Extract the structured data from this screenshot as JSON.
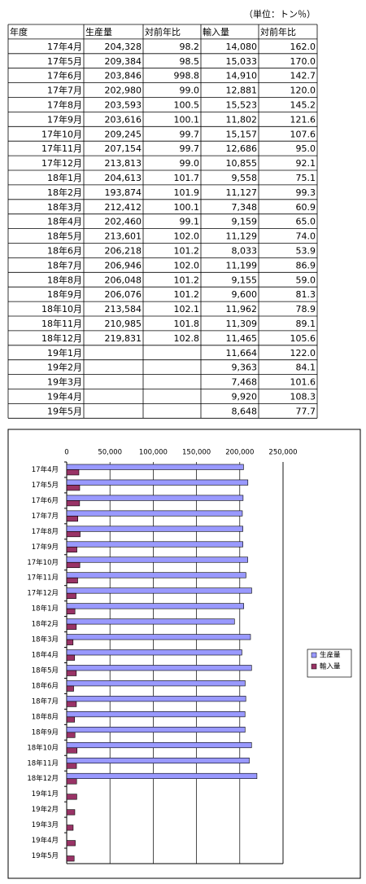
{
  "unit": "（単位：トン％）",
  "table": {
    "header": [
      "年度",
      "生産量",
      "対前年比",
      "輸入量",
      "対前年比"
    ],
    "rows": [
      [
        "17年4月",
        "204,328",
        "98.2",
        "14,080",
        "162.0"
      ],
      [
        "17年5月",
        "209,384",
        "98.5",
        "15,033",
        "170.0"
      ],
      [
        "17年6月",
        "203,846",
        "998.8",
        "14,910",
        "142.7"
      ],
      [
        "17年7月",
        "202,980",
        "99.0",
        "12,881",
        "120.0"
      ],
      [
        "17年8月",
        "203,593",
        "100.5",
        "15,523",
        "145.2"
      ],
      [
        "17年9月",
        "203,616",
        "100.1",
        "11,802",
        "121.6"
      ],
      [
        "17年10月",
        "209,245",
        "99.7",
        "15,157",
        "107.6"
      ],
      [
        "17年11月",
        "207,154",
        "99.7",
        "12,686",
        "95.0"
      ],
      [
        "17年12月",
        "213,813",
        "99.0",
        "10,855",
        "92.1"
      ],
      [
        "18年1月",
        "204,613",
        "101.7",
        "9,558",
        "75.1"
      ],
      [
        "18年2月",
        "193,874",
        "101.9",
        "11,127",
        "99.3"
      ],
      [
        "18年3月",
        "212,412",
        "100.1",
        "7,348",
        "60.9"
      ],
      [
        "18年4月",
        "202,460",
        "99.1",
        "9,159",
        "65.0"
      ],
      [
        "18年5月",
        "213,601",
        "102.0",
        "11,129",
        "74.0"
      ],
      [
        "18年6月",
        "206,218",
        "101.2",
        "8,033",
        "53.9"
      ],
      [
        "18年7月",
        "206,946",
        "102.0",
        "11,199",
        "86.9"
      ],
      [
        "18年8月",
        "206,048",
        "101.2",
        "9,155",
        "59.0"
      ],
      [
        "18年9月",
        "206,076",
        "101.2",
        "9,600",
        "81.3"
      ],
      [
        "18年10月",
        "213,584",
        "102.1",
        "11,962",
        "78.9"
      ],
      [
        "18年11月",
        "210,985",
        "101.8",
        "11,309",
        "89.1"
      ],
      [
        "18年12月",
        "219,831",
        "102.8",
        "11,465",
        "105.6"
      ],
      [
        "19年1月",
        null,
        null,
        "11,664",
        "122.0"
      ],
      [
        "19年2月",
        null,
        null,
        "9,363",
        "84.1"
      ],
      [
        "19年3月",
        null,
        null,
        "7,468",
        "101.6"
      ],
      [
        "19年4月",
        null,
        null,
        "9,920",
        "108.3"
      ],
      [
        "19年5月",
        null,
        null,
        "8,648",
        "77.7"
      ]
    ]
  },
  "chart_data": {
    "type": "hbar",
    "categories": [
      "17年4月",
      "17年5月",
      "17年6月",
      "17年7月",
      "17年8月",
      "17年9月",
      "17年10月",
      "17年11月",
      "17年12月",
      "18年1月",
      "18年2月",
      "18年3月",
      "18年4月",
      "18年5月",
      "18年6月",
      "18年7月",
      "18年8月",
      "18年9月",
      "18年10月",
      "18年11月",
      "18年12月",
      "19年1月",
      "19年2月",
      "19年3月",
      "19年4月",
      "19年5月"
    ],
    "series": [
      {
        "name": "生産量",
        "color": "#9999ff",
        "values": [
          204328,
          209384,
          203846,
          202980,
          203593,
          203616,
          209245,
          207154,
          213813,
          204613,
          193874,
          212412,
          202460,
          213601,
          206218,
          206946,
          206048,
          206076,
          213584,
          210985,
          219831,
          null,
          null,
          null,
          null,
          null
        ]
      },
      {
        "name": "輸入量",
        "color": "#993366",
        "values": [
          14080,
          15033,
          14910,
          12881,
          15523,
          11802,
          15157,
          12686,
          10855,
          9558,
          11127,
          7348,
          9159,
          11129,
          8033,
          11199,
          9155,
          9600,
          11962,
          11309,
          11465,
          11664,
          9363,
          7468,
          9920,
          8648
        ]
      }
    ],
    "xlim": [
      0,
      250000
    ],
    "xticks": [
      0,
      {
        "value": 50000,
        "label": "50,000"
      },
      {
        "value": 100000,
        "label": "100,000"
      },
      {
        "value": 150000,
        "label": "150,000"
      },
      {
        "value": 200000,
        "label": "200,000"
      },
      {
        "value": 250000,
        "label": "250,000"
      }
    ],
    "grid": true,
    "legend": "right"
  }
}
